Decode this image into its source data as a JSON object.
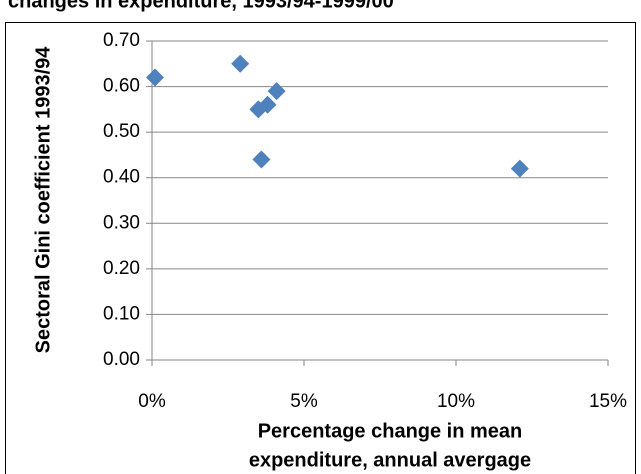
{
  "chart_data": {
    "type": "scatter",
    "title": "changes in expenditure, 1993/94-1999/00",
    "xlabel": [
      "Percentage change in mean",
      "expenditure, annual avergage"
    ],
    "ylabel": "Sectoral Gini coefficient 1993/94",
    "x": [
      0.1,
      2.9,
      3.5,
      3.6,
      3.8,
      4.1,
      12.1
    ],
    "values": [
      0.62,
      0.65,
      0.55,
      0.44,
      0.56,
      0.59,
      0.42
    ],
    "color": "#4f81bd",
    "xlim": [
      0,
      15
    ],
    "xticks": [
      {
        "value": 0,
        "label": "0%"
      },
      {
        "value": 5,
        "label": "5%"
      },
      {
        "value": 10,
        "label": "10%"
      },
      {
        "value": 15,
        "label": "15%"
      }
    ],
    "ylim": [
      0,
      0.7
    ],
    "yticks": [
      {
        "value": 0,
        "label": "0.00"
      },
      {
        "value": 0.1,
        "label": "0.10"
      },
      {
        "value": 0.2,
        "label": "0.20"
      },
      {
        "value": 0.3,
        "label": "0.30"
      },
      {
        "value": 0.4,
        "label": "0.40"
      },
      {
        "value": 0.5,
        "label": "0.50"
      },
      {
        "value": 0.6,
        "label": "0.60"
      },
      {
        "value": 0.7,
        "label": "0.70"
      }
    ],
    "grid": true
  }
}
